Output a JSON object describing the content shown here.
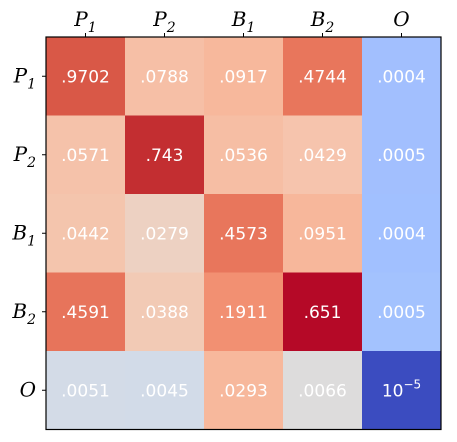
{
  "chart_data": {
    "type": "heatmap",
    "title": "",
    "xlabel": "",
    "ylabel": "",
    "columns": [
      {
        "base": "P",
        "sub": "1"
      },
      {
        "base": "P",
        "sub": "2"
      },
      {
        "base": "B",
        "sub": "1"
      },
      {
        "base": "B",
        "sub": "2"
      },
      {
        "base": "O",
        "sub": ""
      }
    ],
    "rows": [
      {
        "base": "P",
        "sub": "1"
      },
      {
        "base": "P",
        "sub": "2"
      },
      {
        "base": "B",
        "sub": "1"
      },
      {
        "base": "B",
        "sub": "2"
      },
      {
        "base": "O",
        "sub": ""
      }
    ],
    "values": [
      [
        0.9702,
        0.0788,
        0.0917,
        0.4744,
        0.0004
      ],
      [
        0.0571,
        0.743,
        0.0536,
        0.0429,
        0.0005
      ],
      [
        0.0442,
        0.0279,
        0.4573,
        0.0951,
        0.0004
      ],
      [
        0.4591,
        0.0388,
        0.1911,
        0.651,
        0.0005
      ],
      [
        0.0051,
        0.0045,
        0.0293,
        0.0066,
        1e-05
      ]
    ],
    "labels": [
      [
        ".9702",
        ".0788",
        ".0917",
        ".4744",
        ".0004"
      ],
      [
        ".0571",
        ".743",
        ".0536",
        ".0429",
        ".0005"
      ],
      [
        ".0442",
        ".0279",
        ".4573",
        ".0951",
        ".0004"
      ],
      [
        ".4591",
        ".0388",
        ".1911",
        ".651",
        ".0005"
      ],
      [
        ".0051",
        ".0045",
        ".0293",
        ".0066",
        "10^-5"
      ]
    ],
    "colors": [
      [
        "#d95847",
        "#f6bfa6",
        "#f7b89c",
        "#e8765c",
        "#a2bffe"
      ],
      [
        "#f5c2aa",
        "#c32e31",
        "#f6bea4",
        "#f6c4ad",
        "#a2bffe"
      ],
      [
        "#f4c5ad",
        "#edd1c2",
        "#e8765c",
        "#f7b79b",
        "#a1c0ff"
      ],
      [
        "#e7745b",
        "#f2cab5",
        "#f29072",
        "#b50927",
        "#a3c2fe"
      ],
      [
        "#d3dbe7",
        "#d2dbe8",
        "#f7b89c",
        "#dddcdc",
        "#3b4cc0"
      ]
    ],
    "colormap": "coolwarm",
    "grid": false,
    "legend": "none"
  }
}
